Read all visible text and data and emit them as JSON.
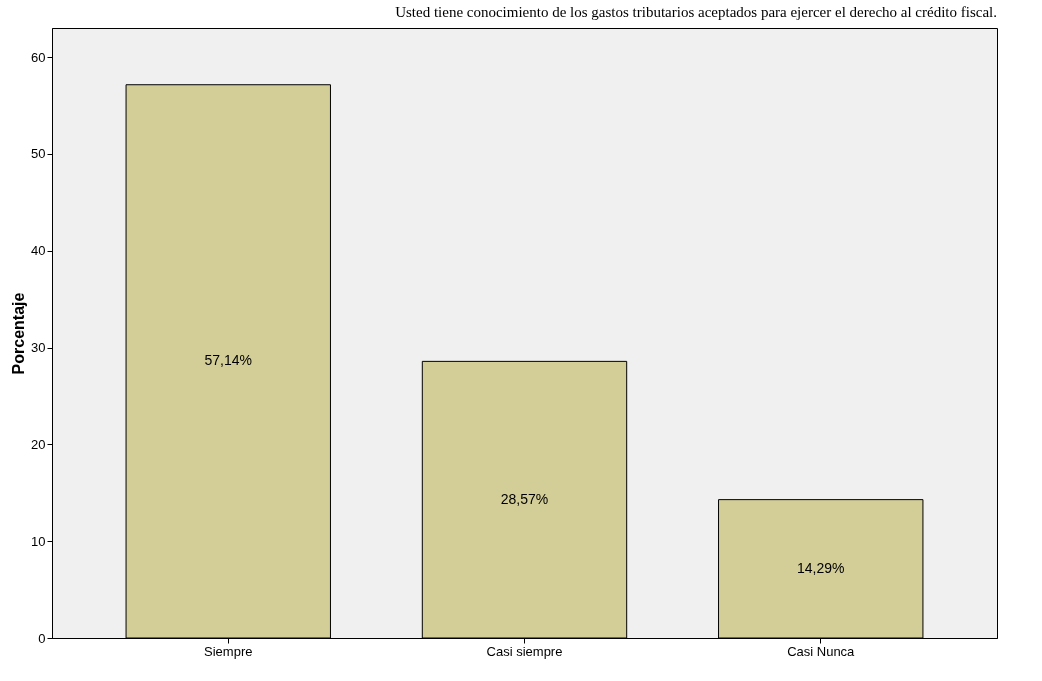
{
  "chart_data": {
    "type": "bar",
    "title": "Usted tiene conocimiento de los gastos tributarios aceptados para ejercer el derecho al crédito fiscal.",
    "ylabel": "Porcentaje",
    "categories": [
      "Siempre",
      "Casi siempre",
      "Casi Nunca"
    ],
    "values": [
      57.14,
      28.57,
      14.29
    ],
    "value_labels": [
      "57,14%",
      "28,57%",
      "14,29%"
    ],
    "color": "#d3ce98",
    "ylim": [
      0,
      63
    ],
    "yticks": [
      0,
      10,
      20,
      30,
      40,
      50,
      60
    ],
    "grid": false
  }
}
